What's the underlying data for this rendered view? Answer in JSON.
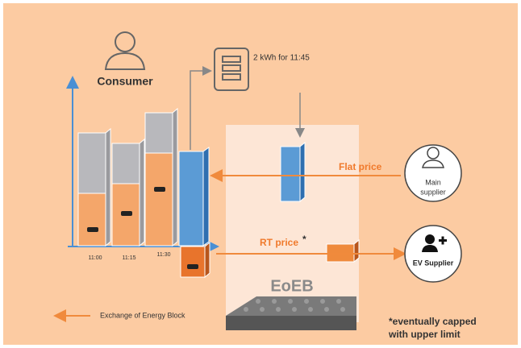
{
  "consumer": {
    "label": "Consumer"
  },
  "device": {
    "label": "2 kWh for 11:45"
  },
  "time_labels": [
    "11:00",
    "11:15",
    "11:30"
  ],
  "prices": {
    "flat": "Flat price",
    "rt": "RT price",
    "rt_note": "*"
  },
  "suppliers": {
    "main": [
      "Main",
      "supplier"
    ],
    "ev": "EV Supplier"
  },
  "eoeb": {
    "label": "EoEB"
  },
  "legend": {
    "label": "Exchange of Energy Block"
  },
  "footnote": {
    "lines": [
      "*eventually capped",
      "with upper limit"
    ]
  }
}
